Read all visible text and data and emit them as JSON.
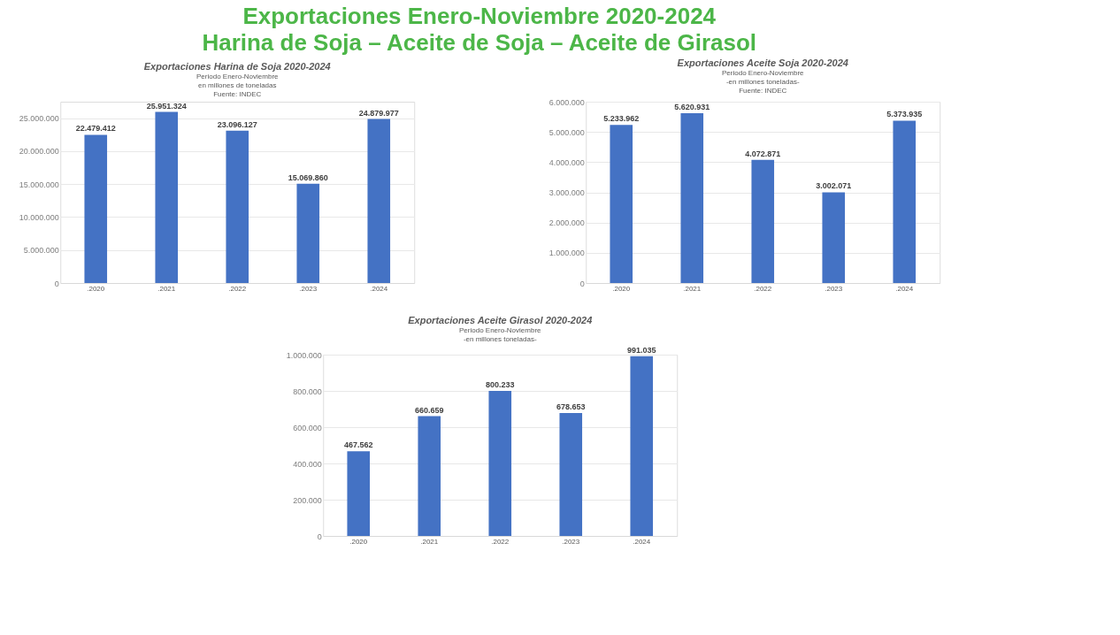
{
  "chart_data": [
    {
      "type": "other",
      "title": "Exportaciones Enero-Noviembre 2020-2024",
      "subtitle": "Harina de Soja – Aceite de Soja – Aceite de Girasol"
    },
    {
      "type": "bar",
      "title": "Exportaciones Harina de Soja 2020-2024",
      "subtitle": "Periodo Enero-Noviembre\nen millones de toneladas\nFuente: INDEC",
      "categories": [
        ".2020",
        ".2021",
        ".2022",
        ".2023",
        ".2024"
      ],
      "values": [
        22479412,
        25951324,
        23096127,
        15069860,
        24879977
      ],
      "value_labels": [
        "22.479.412",
        "25.951.324",
        "23.096.127",
        "15.069.860",
        "24.879.977"
      ],
      "color": "#4472c4",
      "ylim": [
        0,
        27500000
      ],
      "yticks": [
        {
          "value": 0,
          "label": "0"
        },
        {
          "value": 5000000,
          "label": "5.000.000"
        },
        {
          "value": 10000000,
          "label": "10.000.000"
        },
        {
          "value": 15000000,
          "label": "15.000.000"
        },
        {
          "value": 20000000,
          "label": "20.000.000"
        },
        {
          "value": 25000000,
          "label": "25.000.000"
        }
      ],
      "grid": "y"
    },
    {
      "type": "bar",
      "title": "Exportaciones Aceite Soja 2020-2024",
      "subtitle": "Periodo Enero-Noviembre\n-en millones toneladas-\nFuente: INDEC",
      "categories": [
        ".2020",
        ".2021",
        ".2022",
        ".2023",
        ".2024"
      ],
      "values": [
        5233962,
        5620931,
        4072871,
        3002071,
        5373935
      ],
      "value_labels": [
        "5.233.962",
        "5.620.931",
        "4.072.871",
        "3.002.071",
        "5.373.935"
      ],
      "color": "#4472c4",
      "ylim": [
        0,
        6000000
      ],
      "yticks": [
        {
          "value": 0,
          "label": "0"
        },
        {
          "value": 1000000,
          "label": "1.000.000"
        },
        {
          "value": 2000000,
          "label": "2.000.000"
        },
        {
          "value": 3000000,
          "label": "3.000.000"
        },
        {
          "value": 4000000,
          "label": "4.000.000"
        },
        {
          "value": 5000000,
          "label": "5.000.000"
        },
        {
          "value": 6000000,
          "label": "6.000.000"
        }
      ],
      "grid": "y"
    },
    {
      "type": "bar",
      "title": "Exportaciones Aceite Girasol 2020-2024",
      "subtitle": "Periodo Enero-Noviembre\n-en millones toneladas-",
      "categories": [
        ".2020",
        ".2021",
        ".2022",
        ".2023",
        ".2024"
      ],
      "values": [
        467562,
        660659,
        800233,
        678653,
        991035
      ],
      "value_labels": [
        "467.562",
        "660.659",
        "800.233",
        "678.653",
        "991.035"
      ],
      "color": "#4472c4",
      "ylim": [
        0,
        1000000
      ],
      "yticks": [
        {
          "value": 0,
          "label": "0"
        },
        {
          "value": 200000,
          "label": "200.000"
        },
        {
          "value": 400000,
          "label": "400.000"
        },
        {
          "value": 600000,
          "label": "600.000"
        },
        {
          "value": 800000,
          "label": "800.000"
        },
        {
          "value": 1000000,
          "label": "1.000.000"
        }
      ],
      "grid": "y"
    }
  ]
}
